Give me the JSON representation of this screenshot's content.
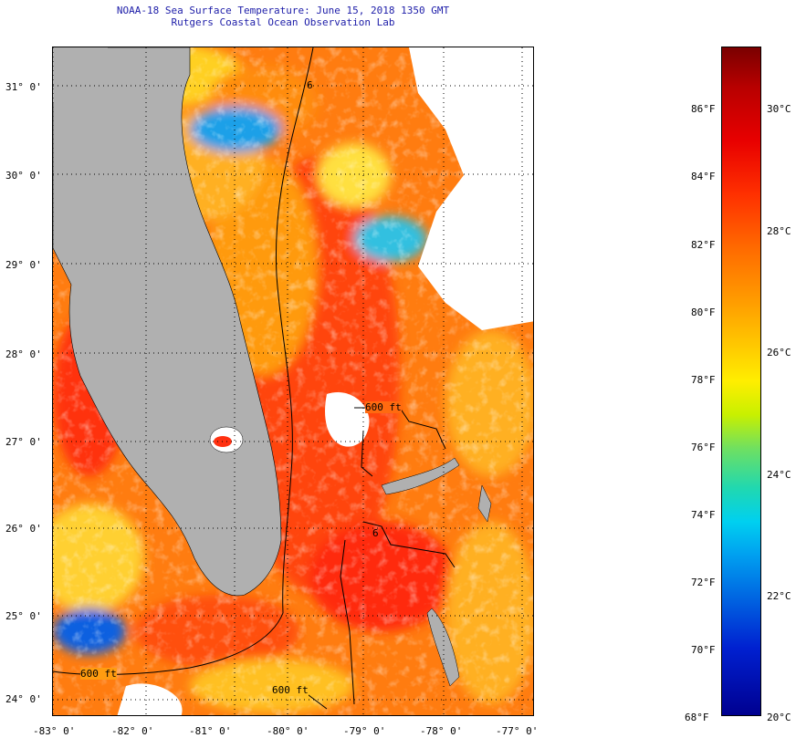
{
  "title": {
    "line1": "NOAA-18 Sea Surface Temperature:  June 15, 2018 1350 GMT",
    "line2": "Rutgers Coastal Ocean Observation Lab"
  },
  "map": {
    "lat_labels": [
      "31° 0'",
      "30° 0'",
      "29° 0'",
      "28° 0'",
      "27° 0'",
      "26° 0'",
      "25° 0'",
      "24° 0'"
    ],
    "lon_labels": [
      "-83° 0'",
      "-82° 0'",
      "-81° 0'",
      "-80° 0'",
      "-79° 0'",
      "-78° 0'",
      "-77° 0'"
    ],
    "contour_labels": [
      "600 ft",
      "600 ft",
      "600 ft"
    ],
    "contour_labels_partial": [
      "6",
      "6"
    ],
    "land_color": "#b0b0b0",
    "cloud_color": "#ffffff"
  },
  "colorbar": {
    "fahrenheit_labels": [
      "86°F",
      "84°F",
      "82°F",
      "80°F",
      "78°F",
      "76°F",
      "74°F",
      "72°F",
      "70°F",
      "68°F"
    ],
    "celsius_labels": [
      "30°C",
      "28°C",
      "26°C",
      "24°C",
      "22°C",
      "20°C"
    ]
  }
}
